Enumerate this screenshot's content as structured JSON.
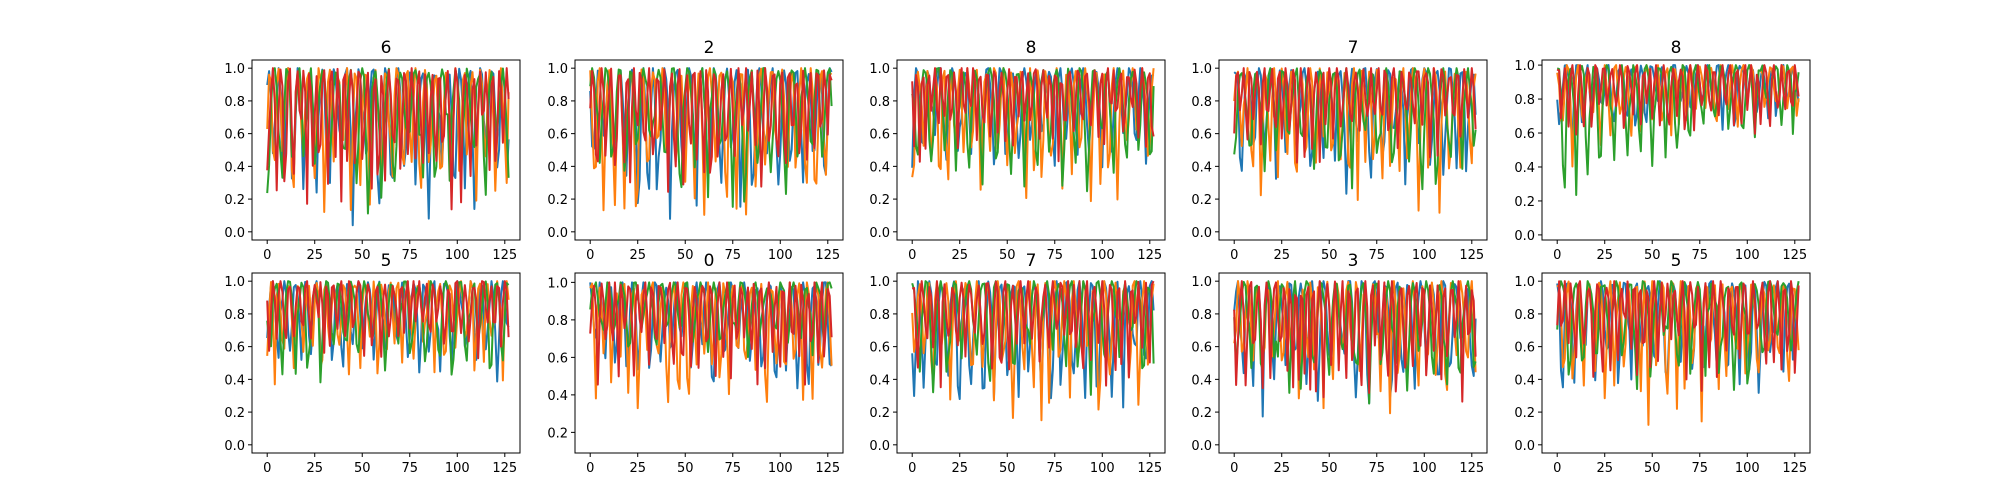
{
  "figure": {
    "background": "#ffffff",
    "layout": "2 rows x 5 columns"
  },
  "chart_data": [
    {
      "type": "line",
      "title": "6",
      "xlim": [
        -8,
        133
      ],
      "ylim": [
        -0.05,
        1.05
      ],
      "xticks": [
        0,
        25,
        50,
        75,
        100,
        125
      ],
      "yticks": [
        0.0,
        0.2,
        0.4,
        0.6,
        0.8,
        1.0
      ],
      "series": [
        {
          "color": "#1f77b4",
          "osc": [
            0.0,
            1.0
          ],
          "period": [
            5,
            7
          ],
          "trend": "mixed",
          "seed": 11
        },
        {
          "color": "#ff7f0e",
          "osc": [
            0.05,
            1.0
          ],
          "period": [
            4,
            6
          ],
          "trend": "mixed",
          "seed": 12
        },
        {
          "color": "#2ca02c",
          "osc": [
            0.1,
            1.0
          ],
          "period": [
            6,
            8
          ],
          "trend": "mixed",
          "seed": 13
        },
        {
          "color": "#d62728",
          "osc": [
            0.05,
            1.0
          ],
          "period": [
            3,
            5
          ],
          "trend": "mixed",
          "seed": 14
        }
      ]
    },
    {
      "type": "line",
      "title": "2",
      "xlim": [
        -8,
        133
      ],
      "ylim": [
        -0.05,
        1.05
      ],
      "xticks": [
        0,
        25,
        50,
        75,
        100,
        125
      ],
      "yticks": [
        0.0,
        0.2,
        0.4,
        0.6,
        0.8,
        1.0
      ],
      "series": [
        {
          "color": "#1f77b4",
          "osc": [
            0.0,
            1.0
          ],
          "period": [
            5,
            7
          ],
          "trend": "mixed",
          "seed": 21
        },
        {
          "color": "#ff7f0e",
          "osc": [
            0.0,
            1.0
          ],
          "period": [
            4,
            6
          ],
          "trend": "mixed",
          "seed": 22
        },
        {
          "color": "#2ca02c",
          "osc": [
            0.1,
            1.0
          ],
          "period": [
            6,
            8
          ],
          "trend": "mixed",
          "seed": 23
        },
        {
          "color": "#d62728",
          "osc": [
            0.1,
            1.0
          ],
          "period": [
            3,
            5
          ],
          "trend": "mixed",
          "seed": 24
        }
      ]
    },
    {
      "type": "line",
      "title": "8",
      "xlim": [
        -8,
        133
      ],
      "ylim": [
        -0.05,
        1.05
      ],
      "xticks": [
        0,
        25,
        50,
        75,
        100,
        125
      ],
      "yticks": [
        0.0,
        0.2,
        0.4,
        0.6,
        0.8,
        1.0
      ],
      "series": [
        {
          "color": "#1f77b4",
          "osc": [
            0.3,
            1.0
          ],
          "period": [
            5,
            7
          ],
          "trend": "mixed",
          "seed": 31
        },
        {
          "color": "#ff7f0e",
          "osc": [
            0.1,
            1.0
          ],
          "period": [
            4,
            6
          ],
          "trend": "mixed",
          "seed": 32
        },
        {
          "color": "#2ca02c",
          "osc": [
            0.2,
            1.0
          ],
          "period": [
            6,
            8
          ],
          "trend": "mixed",
          "seed": 33
        },
        {
          "color": "#d62728",
          "osc": [
            0.4,
            1.0
          ],
          "period": [
            3,
            5
          ],
          "trend": "mixed",
          "seed": 34
        }
      ]
    },
    {
      "type": "line",
      "title": "7",
      "xlim": [
        -8,
        133
      ],
      "ylim": [
        -0.05,
        1.05
      ],
      "xticks": [
        0,
        25,
        50,
        75,
        100,
        125
      ],
      "yticks": [
        0.0,
        0.2,
        0.4,
        0.6,
        0.8,
        1.0
      ],
      "series": [
        {
          "color": "#1f77b4",
          "osc": [
            0.2,
            1.0
          ],
          "period": [
            5,
            7
          ],
          "trend": "mixed",
          "seed": 41
        },
        {
          "color": "#ff7f0e",
          "osc": [
            0.1,
            1.0
          ],
          "period": [
            4,
            6
          ],
          "trend": "mixed",
          "seed": 42
        },
        {
          "color": "#2ca02c",
          "osc": [
            0.2,
            1.0
          ],
          "period": [
            6,
            8
          ],
          "trend": "mixed",
          "seed": 43
        },
        {
          "color": "#d62728",
          "osc": [
            0.4,
            1.0
          ],
          "period": [
            3,
            5
          ],
          "trend": "mixed",
          "seed": 44
        }
      ]
    },
    {
      "type": "line",
      "title": "8",
      "xlim": [
        -8,
        133
      ],
      "ylim": [
        -0.03,
        1.03
      ],
      "xticks": [
        0,
        25,
        50,
        75,
        100,
        125
      ],
      "yticks": [
        0.0,
        0.2,
        0.4,
        0.6,
        0.8,
        1.0
      ],
      "series": [
        {
          "color": "#1f77b4",
          "osc": [
            0.4,
            1.0
          ],
          "period": [
            5,
            7
          ],
          "trend": "rise",
          "seed": 51
        },
        {
          "color": "#ff7f0e",
          "osc": [
            0.35,
            1.0
          ],
          "period": [
            4,
            6
          ],
          "trend": "rise",
          "seed": 52
        },
        {
          "color": "#2ca02c",
          "osc": [
            0.15,
            1.0
          ],
          "period": [
            6,
            8
          ],
          "trend": "rise",
          "seed": 53
        },
        {
          "color": "#d62728",
          "osc": [
            0.5,
            1.0
          ],
          "period": [
            3,
            5
          ],
          "trend": "mixed",
          "seed": 54
        }
      ]
    },
    {
      "type": "line",
      "title": "5",
      "xlim": [
        -8,
        133
      ],
      "ylim": [
        -0.05,
        1.05
      ],
      "xticks": [
        0,
        25,
        50,
        75,
        100,
        125
      ],
      "yticks": [
        0.0,
        0.2,
        0.4,
        0.6,
        0.8,
        1.0
      ],
      "series": [
        {
          "color": "#1f77b4",
          "osc": [
            0.3,
            1.0
          ],
          "period": [
            5,
            7
          ],
          "trend": "mixed",
          "seed": 61
        },
        {
          "color": "#ff7f0e",
          "osc": [
            0.3,
            1.0
          ],
          "period": [
            4,
            6
          ],
          "trend": "mixed",
          "seed": 62
        },
        {
          "color": "#2ca02c",
          "osc": [
            0.3,
            1.0
          ],
          "period": [
            6,
            8
          ],
          "trend": "mixed",
          "seed": 63
        },
        {
          "color": "#d62728",
          "osc": [
            0.5,
            1.0
          ],
          "period": [
            3,
            5
          ],
          "trend": "mixed",
          "seed": 64
        }
      ]
    },
    {
      "type": "line",
      "title": "0",
      "xlim": [
        -8,
        133
      ],
      "ylim": [
        0.09,
        1.05
      ],
      "xticks": [
        0,
        25,
        50,
        75,
        100,
        125
      ],
      "yticks": [
        0.2,
        0.4,
        0.6,
        0.8,
        1.0
      ],
      "series": [
        {
          "color": "#1f77b4",
          "osc": [
            0.35,
            1.0
          ],
          "period": [
            5,
            7
          ],
          "trend": "mixed",
          "seed": 71
        },
        {
          "color": "#ff7f0e",
          "osc": [
            0.2,
            1.0
          ],
          "period": [
            4,
            6
          ],
          "trend": "mixed",
          "seed": 72
        },
        {
          "color": "#2ca02c",
          "osc": [
            0.55,
            1.0
          ],
          "period": [
            6,
            8
          ],
          "trend": "mixed",
          "seed": 73
        },
        {
          "color": "#d62728",
          "osc": [
            0.4,
            1.0
          ],
          "period": [
            3,
            5
          ],
          "trend": "mixed",
          "seed": 74
        }
      ]
    },
    {
      "type": "line",
      "title": "7",
      "xlim": [
        -8,
        133
      ],
      "ylim": [
        -0.05,
        1.05
      ],
      "xticks": [
        0,
        25,
        50,
        75,
        100,
        125
      ],
      "yticks": [
        0.0,
        0.2,
        0.4,
        0.6,
        0.8,
        1.0
      ],
      "series": [
        {
          "color": "#1f77b4",
          "osc": [
            0.1,
            1.0
          ],
          "period": [
            5,
            7
          ],
          "trend": "mixed",
          "seed": 81
        },
        {
          "color": "#ff7f0e",
          "osc": [
            0.1,
            1.0
          ],
          "period": [
            4,
            6
          ],
          "trend": "mixed",
          "seed": 82
        },
        {
          "color": "#2ca02c",
          "osc": [
            0.3,
            1.0
          ],
          "period": [
            6,
            8
          ],
          "trend": "mixed",
          "seed": 83
        },
        {
          "color": "#d62728",
          "osc": [
            0.3,
            1.0
          ],
          "period": [
            3,
            5
          ],
          "trend": "mixed",
          "seed": 84
        }
      ]
    },
    {
      "type": "line",
      "title": "3",
      "xlim": [
        -8,
        133
      ],
      "ylim": [
        -0.05,
        1.05
      ],
      "xticks": [
        0,
        25,
        50,
        75,
        100,
        125
      ],
      "yticks": [
        0.0,
        0.2,
        0.4,
        0.6,
        0.8,
        1.0
      ],
      "series": [
        {
          "color": "#1f77b4",
          "osc": [
            0.1,
            1.0
          ],
          "period": [
            5,
            7
          ],
          "trend": "mixed",
          "seed": 91
        },
        {
          "color": "#ff7f0e",
          "osc": [
            0.1,
            1.0
          ],
          "period": [
            4,
            6
          ],
          "trend": "mixed",
          "seed": 92
        },
        {
          "color": "#2ca02c",
          "osc": [
            0.2,
            1.0
          ],
          "period": [
            6,
            8
          ],
          "trend": "mixed",
          "seed": 93
        },
        {
          "color": "#d62728",
          "osc": [
            0.2,
            1.0
          ],
          "period": [
            3,
            5
          ],
          "trend": "mixed",
          "seed": 94
        }
      ]
    },
    {
      "type": "line",
      "title": "5",
      "xlim": [
        -8,
        133
      ],
      "ylim": [
        -0.05,
        1.05
      ],
      "xticks": [
        0,
        25,
        50,
        75,
        100,
        125
      ],
      "yticks": [
        0.0,
        0.2,
        0.4,
        0.6,
        0.8,
        1.0
      ],
      "series": [
        {
          "color": "#1f77b4",
          "osc": [
            0.2,
            1.0
          ],
          "period": [
            5,
            7
          ],
          "trend": "mixed",
          "seed": 101
        },
        {
          "color": "#ff7f0e",
          "osc": [
            0.1,
            1.0
          ],
          "period": [
            4,
            6
          ],
          "trend": "mixed",
          "seed": 102
        },
        {
          "color": "#2ca02c",
          "osc": [
            0.3,
            1.0
          ],
          "period": [
            6,
            8
          ],
          "trend": "mixed",
          "seed": 103
        },
        {
          "color": "#d62728",
          "osc": [
            0.3,
            1.0
          ],
          "period": [
            3,
            5
          ],
          "trend": "mixed",
          "seed": 104
        }
      ]
    }
  ]
}
